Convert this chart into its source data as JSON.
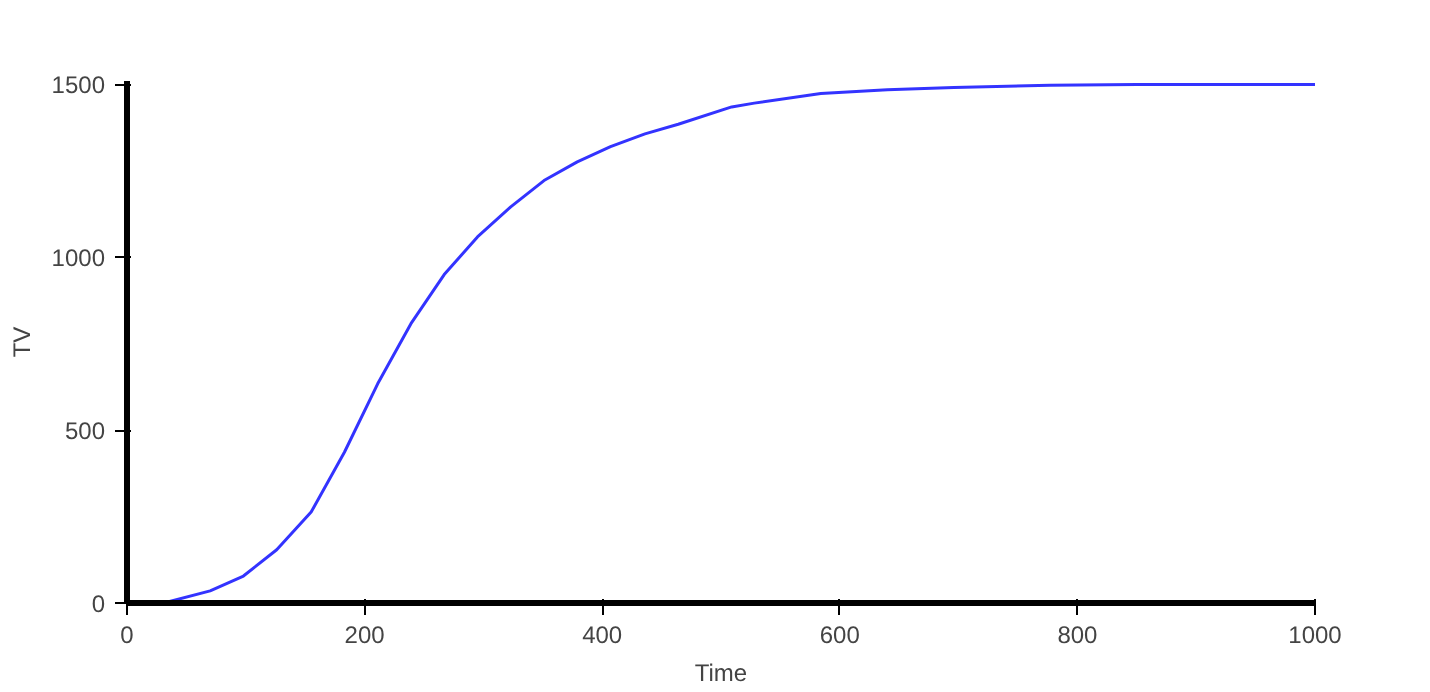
{
  "chart_data": {
    "type": "line",
    "xlabel": "Time",
    "ylabel": "TV",
    "x": [
      0,
      31,
      70,
      98,
      126,
      155,
      183,
      211,
      239,
      267,
      295,
      323,
      351,
      379,
      407,
      436,
      464,
      509,
      528,
      584,
      640,
      696,
      777,
      850,
      1000
    ],
    "series": [
      {
        "color": "#3333ff",
        "values": [
          0,
          0,
          35,
          78,
          154,
          263,
          436,
          634,
          808,
          950,
          1059,
          1146,
          1222,
          1276,
          1320,
          1357,
          1385,
          1435,
          1446,
          1474,
          1485,
          1491,
          1498,
          1500,
          1500
        ]
      }
    ],
    "xlim": [
      0,
      1000
    ],
    "ylim": [
      0,
      1510
    ],
    "xticks": [
      0,
      200,
      400,
      600,
      800,
      1000
    ],
    "yticks": [
      0,
      500,
      1000,
      1500
    ],
    "grid": false,
    "marker": "none",
    "line_style": "solid"
  }
}
